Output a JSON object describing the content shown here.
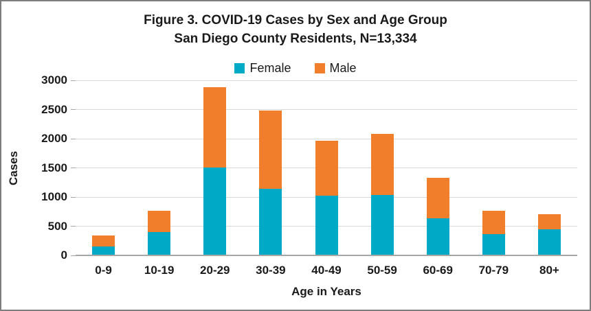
{
  "chart_data": {
    "type": "bar",
    "stacked": true,
    "title": "Figure 3. COVID-19 Cases by Sex and Age Group",
    "subtitle": "San Diego County Residents, N=13,334",
    "categories": [
      "0-9",
      "10-19",
      "20-29",
      "30-39",
      "40-49",
      "50-59",
      "60-69",
      "70-79",
      "80+"
    ],
    "series": [
      {
        "name": "Female",
        "color": "#00A9C5",
        "values": [
          155,
          400,
          1510,
          1145,
          1020,
          1040,
          640,
          370,
          445
        ]
      },
      {
        "name": "Male",
        "color": "#F07E2A",
        "values": [
          185,
          365,
          1370,
          1335,
          945,
          1040,
          690,
          390,
          260
        ]
      }
    ],
    "xlabel": "Age in Years",
    "ylabel": "Cases",
    "ylim": [
      0,
      3000
    ],
    "ytick_interval": 500,
    "ytick_labels": [
      "0",
      "500",
      "1000",
      "1500",
      "2000",
      "2500",
      "3000"
    ],
    "legend_position": "top",
    "grid": "horizontal"
  },
  "style_colors": {
    "gridline": "#d9d9d9",
    "axis_line": "#a6a6a6",
    "text": "#1a1a1a",
    "outer_border": "#7d7d7d"
  }
}
